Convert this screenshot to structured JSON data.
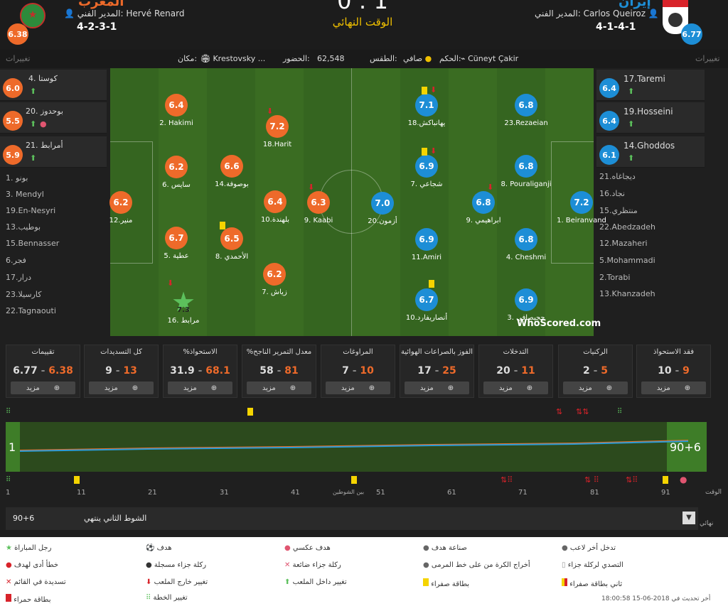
{
  "home": {
    "name": "المغرب",
    "rating": "6.38",
    "manager_label": "المدير الفني:",
    "manager": "Hervé Renard",
    "formation": "4-2-3-1",
    "color": "#ee6a2a"
  },
  "away": {
    "name": "إيران",
    "rating": "6.77",
    "manager_label": "المدير الفني:",
    "manager": "Carlos Queiroz",
    "formation": "4-1-4-1",
    "color": "#1d8ed6"
  },
  "score": "0 : 1",
  "status": "الوقت النهائي",
  "info": {
    "subs_label": "تغييرات",
    "venue_label": "مكان:",
    "venue": "Krestovsky ...",
    "attendance_label": "الحضور:",
    "attendance": "62,548",
    "weather_label": "الطقس:",
    "weather": "صافي",
    "referee_label": "الحكم:",
    "referee": "Cüneyt Çakir"
  },
  "home_subs": [
    {
      "name": "4. كوستا",
      "rating": "6.0"
    },
    {
      "name": "20. بوحدوز",
      "rating": "5.5"
    },
    {
      "name": "21. أمرابط",
      "rating": "5.9"
    }
  ],
  "home_bench": [
    "1. بونو",
    "3. Mendyl",
    "19.En-Nesyri",
    "13.بوطيب",
    "15.Bennasser",
    "6.فجر",
    "17.درار",
    "23.كارسيلا",
    "22.Tagnaouti"
  ],
  "away_subs": [
    {
      "name": "17.Taremi",
      "rating": "6.4"
    },
    {
      "name": "19.Hosseini",
      "rating": "6.4"
    },
    {
      "name": "14.Ghoddos",
      "rating": "6.1"
    }
  ],
  "away_bench": [
    "21.ديجاغاه",
    "16.نجاد",
    "15.منتظري",
    "22.Abedzadeh",
    "12.Mazaheri",
    "5.Mohammadi",
    "2.Torabi",
    "13.Khanzadeh"
  ],
  "home_players": [
    {
      "name": "2. Hakimi",
      "rating": "6.4"
    },
    {
      "name": "18.Harit",
      "rating": "7.2"
    },
    {
      "name": "6. سايس",
      "rating": "6.2"
    },
    {
      "name": "14.بوصوفة",
      "rating": "6.6"
    },
    {
      "name": "12.منير",
      "rating": "6.2"
    },
    {
      "name": "10.بلهندة",
      "rating": "6.4"
    },
    {
      "name": "9. Kaabi",
      "rating": "6.3"
    },
    {
      "name": "5. عطية",
      "rating": "6.7"
    },
    {
      "name": "8. الأحمدي",
      "rating": "6.5"
    },
    {
      "name": "7. زياش",
      "rating": "6.2"
    },
    {
      "name": "16. مرابط",
      "rating": "7.3"
    }
  ],
  "away_players": [
    {
      "name": "18.يهانباكش",
      "rating": "7.1"
    },
    {
      "name": "23.Rezaeian",
      "rating": "6.8"
    },
    {
      "name": "7. شجاعي",
      "rating": "6.9"
    },
    {
      "name": "8. Pouraliganji",
      "rating": "6.8"
    },
    {
      "name": "20.أزمون",
      "rating": "7.0"
    },
    {
      "name": "9. ابراهيمي",
      "rating": "6.8"
    },
    {
      "name": "1. Beiranvand",
      "rating": "7.2"
    },
    {
      "name": "11.Amiri",
      "rating": "6.9"
    },
    {
      "name": "4. Cheshmi",
      "rating": "6.8"
    },
    {
      "name": "10.أنصاريفارد",
      "rating": "6.7"
    },
    {
      "name": "3. حجيصافي",
      "rating": "6.9"
    }
  ],
  "logo": "WhoScored.com",
  "stats": [
    {
      "title": "فقد الاستحواذ",
      "home": "9",
      "away": "10"
    },
    {
      "title": "الركنيات",
      "home": "5",
      "away": "2"
    },
    {
      "title": "التدخلات",
      "home": "11",
      "away": "20"
    },
    {
      "title": "الفوز بالصراعات الهوائية",
      "home": "25",
      "away": "17"
    },
    {
      "title": "المراوغات",
      "home": "10",
      "away": "7"
    },
    {
      "title": "%معدل التمرير الناجح",
      "home": "81",
      "away": "58"
    },
    {
      "title": "%الاستحواذ",
      "home": "68.1",
      "away": "31.9"
    },
    {
      "title": "كل التسديدات",
      "home": "13",
      "away": "9"
    },
    {
      "title": "تقييمات",
      "home": "6.38",
      "away": "6.77"
    }
  ],
  "more_label": "مزيد",
  "timeline": {
    "start": "1",
    "end": "90+6",
    "ticks": [
      "1",
      "11",
      "21",
      "31",
      "41",
      "بين الشوطين",
      "51",
      "61",
      "71",
      "81",
      "91"
    ],
    "time_label": "الوقت"
  },
  "period": {
    "time": "90+6",
    "text": "الشوط الثاني ينتهي",
    "final_label": "نهائي"
  },
  "legend": [
    {
      "label": "رجل المباراة",
      "icon": "star-icon"
    },
    {
      "label": "هدف",
      "icon": "ball-icon"
    },
    {
      "label": "هدف عكسي",
      "icon": "own-goal-icon"
    },
    {
      "label": "صناعة هدف",
      "icon": "assist-icon"
    },
    {
      "label": "تدخل أخر لاعب",
      "icon": "last-man-icon"
    },
    {
      "label": "خطأ أدى لهدف",
      "icon": "error-icon"
    },
    {
      "label": "ركلة جزاء مسجلة",
      "icon": "penalty-icon"
    },
    {
      "label": "ركلة جزاء ضائعة",
      "icon": "penalty-miss-icon"
    },
    {
      "label": "أخراج الكرة من على خط المرمى",
      "icon": "clearance-icon"
    },
    {
      "label": "التصدي لركلة جزاء",
      "icon": "penalty-save-icon"
    },
    {
      "label": "تسديدة في القائم",
      "icon": "post-icon"
    },
    {
      "label": "تغيير خارج الملعب",
      "icon": "sub-off-icon"
    },
    {
      "label": "تغيير داخل الملعب",
      "icon": "sub-on-icon"
    },
    {
      "label": "بطاقة صفراء",
      "icon": "yellow-card-icon"
    },
    {
      "label": "ثاني بطاقة صفراء",
      "icon": "second-yellow-icon"
    },
    {
      "label": "بطاقة حمراء",
      "icon": "red-card-icon"
    },
    {
      "label": "تغيير الخطة",
      "icon": "formation-icon"
    }
  ],
  "updated": "أخر تحديث في 2018-06-15 18:00:58"
}
